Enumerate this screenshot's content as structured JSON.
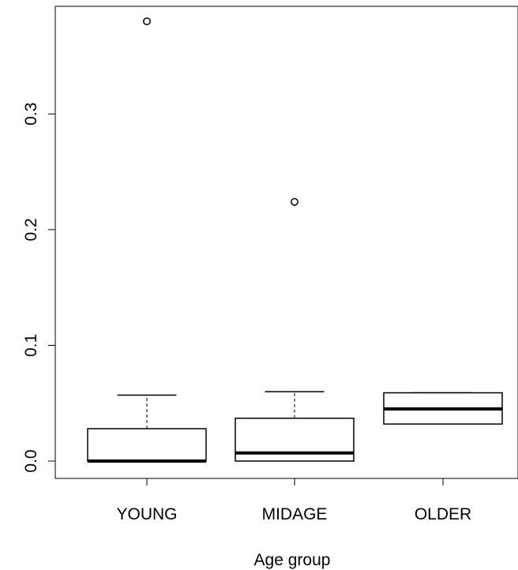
{
  "chart_data": {
    "type": "box",
    "xlabel": "Age group",
    "ylabel": "",
    "title": "",
    "categories": [
      "YOUNG",
      "MIDAGE",
      "OLDER"
    ],
    "y_ticks": [
      0.0,
      0.1,
      0.2,
      0.3
    ],
    "y_tick_labels": [
      "0.0",
      "0.1",
      "0.2",
      "0.3"
    ],
    "ylim": [
      -0.015,
      0.393
    ],
    "grid": false,
    "legend": "none",
    "boxes": [
      {
        "category": "YOUNG",
        "whisker_low": 0.0,
        "q1": 0.0,
        "median": 0.0,
        "q3": 0.028,
        "whisker_high": 0.057,
        "outliers": [
          0.38
        ]
      },
      {
        "category": "MIDAGE",
        "whisker_low": 0.0,
        "q1": 0.0,
        "median": 0.007,
        "q3": 0.037,
        "whisker_high": 0.06,
        "outliers": [
          0.224
        ]
      },
      {
        "category": "OLDER",
        "whisker_low": 0.032,
        "q1": 0.032,
        "median": 0.045,
        "q3": 0.059,
        "whisker_high": 0.059,
        "outliers": []
      }
    ]
  }
}
